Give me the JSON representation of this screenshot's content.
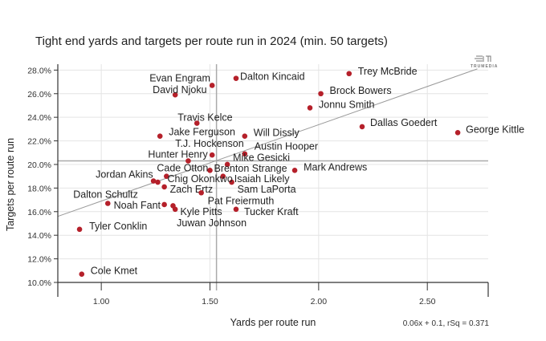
{
  "chart_data": {
    "type": "scatter",
    "title": "Tight end yards and targets per route run in 2024 (min. 50 targets)",
    "xlabel": "Yards per route run",
    "ylabel": "Targets per route run",
    "xlim": [
      0.8,
      2.78
    ],
    "ylim": [
      10,
      28.5
    ],
    "x_ticks": [
      1.0,
      1.5,
      2.0,
      2.5
    ],
    "x_tick_labels": [
      "1.00",
      "1.50",
      "2.00",
      "2.50"
    ],
    "y_ticks": [
      10,
      12,
      14,
      16,
      18,
      20,
      22,
      24,
      26,
      28
    ],
    "y_tick_labels": [
      "10.0%",
      "12.0%",
      "14.0%",
      "16.0%",
      "18.0%",
      "20.0%",
      "22.0%",
      "24.0%",
      "26.0%",
      "28.0%"
    ],
    "grid": true,
    "mean_x": 1.53,
    "mean_y": 20.3,
    "trendline": {
      "x": [
        0.8,
        2.73
      ],
      "y": [
        15.6,
        28.1
      ],
      "equation": "0.06x + 0.1, rSq = 0.371"
    },
    "point_color": "#b5202a",
    "points": [
      {
        "name": "Trey McBride",
        "x": 2.14,
        "y": 27.7
      },
      {
        "name": "Brock Bowers",
        "x": 2.01,
        "y": 26.0
      },
      {
        "name": "Jonnu Smith",
        "x": 1.96,
        "y": 24.8
      },
      {
        "name": "Dallas Goedert",
        "x": 2.2,
        "y": 23.2
      },
      {
        "name": "George Kittle",
        "x": 2.64,
        "y": 22.7
      },
      {
        "name": "Mark Andrews",
        "x": 1.89,
        "y": 19.5
      },
      {
        "name": "Dalton Kincaid",
        "x": 1.62,
        "y": 27.3
      },
      {
        "name": "Evan Engram",
        "x": 1.51,
        "y": 26.7
      },
      {
        "name": "David Njoku",
        "x": 1.34,
        "y": 25.9
      },
      {
        "name": "Travis Kelce",
        "x": 1.44,
        "y": 23.5
      },
      {
        "name": "Jake Ferguson",
        "x": 1.27,
        "y": 22.4
      },
      {
        "name": "Will Dissly",
        "x": 1.66,
        "y": 22.4
      },
      {
        "name": "T.J. Hockenson",
        "x": 1.51,
        "y": 20.8
      },
      {
        "name": "Austin Hooper",
        "x": 1.66,
        "y": 20.9
      },
      {
        "name": "Hunter Henry",
        "x": 1.4,
        "y": 20.3
      },
      {
        "name": "Mike Gesicki",
        "x": 1.58,
        "y": 20.0
      },
      {
        "name": "Brenton Strange",
        "x": 1.5,
        "y": 19.5
      },
      {
        "name": "Cade Otton",
        "x": 1.3,
        "y": 19.0
      },
      {
        "name": "Isaiah Likely",
        "x": 1.56,
        "y": 19.0
      },
      {
        "name": "Sam LaPorta",
        "x": 1.6,
        "y": 18.5
      },
      {
        "name": "Jordan Akins",
        "x": 1.24,
        "y": 18.6
      },
      {
        "name": "Chig Okonkwo",
        "x": 1.26,
        "y": 18.5
      },
      {
        "name": "Zach Ertz",
        "x": 1.29,
        "y": 18.1
      },
      {
        "name": "Pat Freiermuth",
        "x": 1.46,
        "y": 17.6
      },
      {
        "name": "Dalton Schultz",
        "x": 1.03,
        "y": 16.7
      },
      {
        "name": "Noah Fant",
        "x": 1.29,
        "y": 16.6
      },
      {
        "name": "Kyle Pitts",
        "x": 1.33,
        "y": 16.5
      },
      {
        "name": "Juwan Johnson",
        "x": 1.34,
        "y": 16.2
      },
      {
        "name": "Tucker Kraft",
        "x": 1.62,
        "y": 16.2
      },
      {
        "name": "Tyler Conklin",
        "x": 0.9,
        "y": 14.5
      },
      {
        "name": "Cole Kmet",
        "x": 0.91,
        "y": 10.7
      }
    ]
  },
  "logo": {
    "text": "TRUMEDIA"
  }
}
